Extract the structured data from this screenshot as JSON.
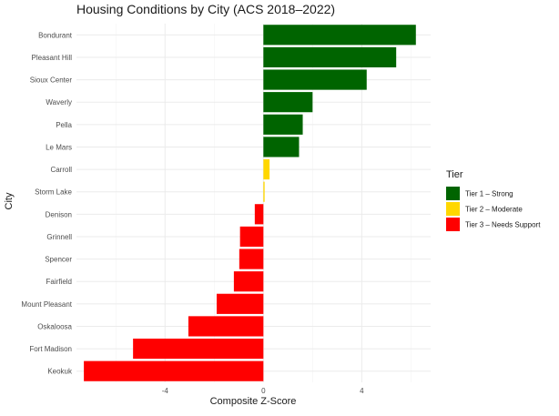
{
  "chart_data": {
    "type": "bar",
    "orientation": "horizontal",
    "title": "Housing Conditions by City (ACS 2018–2022)",
    "xlabel": "Composite Z-Score",
    "ylabel": "City",
    "xlim": [
      -7.6,
      6.8
    ],
    "x_ticks": [
      -4,
      0,
      4
    ],
    "x_tick_labels": [
      "-4",
      "0",
      "4"
    ],
    "grid": true,
    "legend": {
      "title": "Tier",
      "position": "right",
      "entries": [
        {
          "label": "Tier 1 – Strong",
          "color": "#006400"
        },
        {
          "label": "Tier 2 – Moderate",
          "color": "#FFD700"
        },
        {
          "label": "Tier 3 – Needs Support",
          "color": "#FF0000"
        }
      ]
    },
    "categories": [
      "Bondurant",
      "Pleasant Hill",
      "Sioux Center",
      "Waverly",
      "Pella",
      "Le Mars",
      "Carroll",
      "Storm Lake",
      "Denison",
      "Grinnell",
      "Spencer",
      "Fairfield",
      "Mount Pleasant",
      "Oskaloosa",
      "Fort Madison",
      "Keokuk"
    ],
    "values": [
      6.2,
      5.4,
      4.2,
      2.0,
      1.6,
      1.45,
      0.25,
      0.05,
      -0.35,
      -0.95,
      -0.98,
      -1.2,
      -1.9,
      -3.05,
      -5.3,
      -7.3
    ],
    "tiers": [
      1,
      1,
      1,
      1,
      1,
      1,
      2,
      2,
      3,
      3,
      3,
      3,
      3,
      3,
      3,
      3
    ]
  }
}
